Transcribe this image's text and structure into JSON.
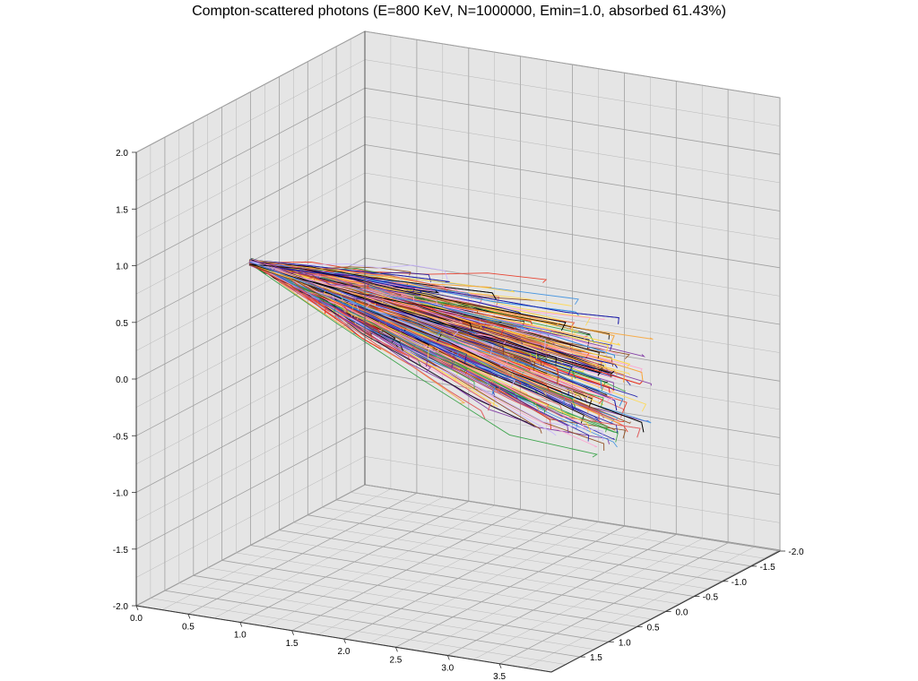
{
  "chart_data": {
    "type": "line3d",
    "title": "Compton-scattered photons (E=800 KeV, N=1000000, Emin=1.0, absorbed 61.43%)",
    "xlabel": "",
    "ylabel": "",
    "zlabel": "",
    "x_ticks": [
      "0.0",
      "0.5",
      "1.0",
      "1.5",
      "2.0",
      "2.5",
      "3.0",
      "3.5"
    ],
    "y_ticks": [
      "-2.0",
      "-1.5",
      "-1.0",
      "-0.5",
      "0.0",
      "0.5",
      "1.0",
      "1.5"
    ],
    "z_ticks": [
      "2.0",
      "1.5",
      "1.0",
      "0.5",
      "0.0",
      "-0.5",
      "-1.0",
      "-1.5",
      "-2.0"
    ],
    "xlim": [
      0,
      4
    ],
    "ylim": [
      -2,
      2
    ],
    "zlim": [
      -2,
      2
    ],
    "grid": true,
    "source_point": [
      0,
      0,
      0.5
    ],
    "beam_direction": "+x",
    "track_extent_x": [
      0,
      3.7
    ],
    "track_spread_z": [
      -0.45,
      0.65
    ],
    "track_count_visible": "dense (hundreds of tracks)",
    "colors": [
      "#000000",
      "#1a1aa6",
      "#3a8fe0",
      "#e8321e",
      "#f7a63c",
      "#ffd84a",
      "#ff9fd0",
      "#7a2fa0",
      "#2e9f3e",
      "#c8b4ff",
      "#8b4513",
      "#e06060"
    ],
    "pane_color": "#e5e5e5"
  }
}
